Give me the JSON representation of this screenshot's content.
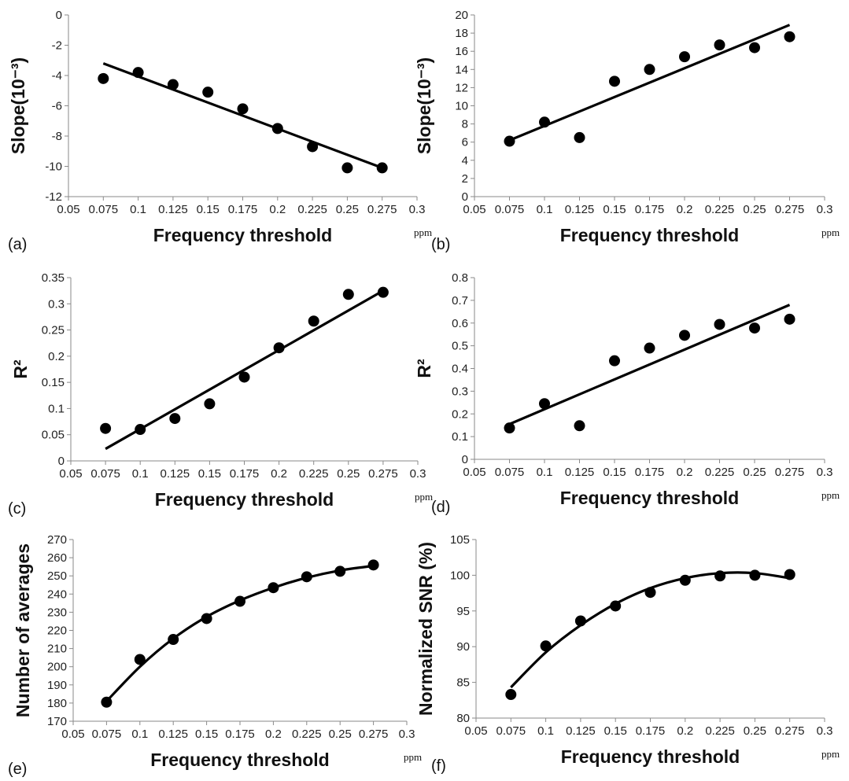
{
  "chart_data": [
    {
      "type": "scatter",
      "panel_label": "(a)",
      "ylabel": "Slope(10⁻³)",
      "xlabel": "Frequency threshold",
      "x_unit": "ppm",
      "xlim": [
        0.05,
        0.3
      ],
      "ylim": [
        -12,
        0
      ],
      "xticks": [
        "0.05",
        "0.075",
        "0.1",
        "0.125",
        "0.15",
        "0.175",
        "0.2",
        "0.225",
        "0.25",
        "0.275",
        "0.3"
      ],
      "yticks": [
        "-12",
        "-10",
        "-8",
        "-6",
        "-4",
        "-2",
        "0"
      ],
      "x": [
        0.075,
        0.1,
        0.125,
        0.15,
        0.175,
        0.2,
        0.225,
        0.25,
        0.275
      ],
      "y": [
        -4.2,
        -3.8,
        -4.6,
        -5.1,
        -6.2,
        -7.5,
        -8.7,
        -10.1,
        -10.1
      ],
      "trend": {
        "type": "linear",
        "x": [
          0.075,
          0.275
        ],
        "y": [
          -3.2,
          -10.1
        ]
      }
    },
    {
      "type": "scatter",
      "panel_label": "(b)",
      "ylabel": "Slope(10⁻³)",
      "xlabel": "Frequency threshold",
      "x_unit": "ppm",
      "xlim": [
        0.05,
        0.3
      ],
      "ylim": [
        0,
        20
      ],
      "xticks": [
        "0.05",
        "0.075",
        "0.1",
        "0.125",
        "0.15",
        "0.175",
        "0.2",
        "0.225",
        "0.25",
        "0.275",
        "0.3"
      ],
      "yticks": [
        "0",
        "2",
        "4",
        "6",
        "8",
        "10",
        "12",
        "14",
        "16",
        "18",
        "20"
      ],
      "x": [
        0.075,
        0.1,
        0.125,
        0.15,
        0.175,
        0.2,
        0.225,
        0.25,
        0.275
      ],
      "y": [
        6.1,
        8.2,
        6.5,
        12.7,
        14.0,
        15.4,
        16.7,
        16.4,
        17.6
      ],
      "trend": {
        "type": "linear",
        "x": [
          0.075,
          0.275
        ],
        "y": [
          6.2,
          18.9
        ]
      }
    },
    {
      "type": "scatter",
      "panel_label": "(c)",
      "ylabel": "R²",
      "xlabel": "Frequency threshold",
      "x_unit": "ppm",
      "xlim": [
        0.05,
        0.3
      ],
      "ylim": [
        0,
        0.35
      ],
      "xticks": [
        "0.05",
        "0.075",
        "0.1",
        "0.125",
        "0.15",
        "0.175",
        "0.2",
        "0.225",
        "0.25",
        "0.275",
        "0.3"
      ],
      "yticks": [
        "0",
        "0.05",
        "0.1",
        "0.15",
        "0.2",
        "0.25",
        "0.3",
        "0.35"
      ],
      "x": [
        0.075,
        0.1,
        0.125,
        0.15,
        0.175,
        0.2,
        0.225,
        0.25,
        0.275
      ],
      "y": [
        0.062,
        0.06,
        0.081,
        0.109,
        0.16,
        0.216,
        0.267,
        0.318,
        0.322
      ],
      "trend": {
        "type": "linear",
        "x": [
          0.075,
          0.275
        ],
        "y": [
          0.023,
          0.325
        ]
      }
    },
    {
      "type": "scatter",
      "panel_label": "(d)",
      "ylabel": "R²",
      "xlabel": "Frequency threshold",
      "x_unit": "ppm",
      "xlim": [
        0.05,
        0.3
      ],
      "ylim": [
        0,
        0.8
      ],
      "xticks": [
        "0.05",
        "0.075",
        "0.1",
        "0.125",
        "0.15",
        "0.175",
        "0.2",
        "0.225",
        "0.25",
        "0.275",
        "0.3"
      ],
      "yticks": [
        "0",
        "0.1",
        "0.2",
        "0.3",
        "0.4",
        "0.5",
        "0.6",
        "0.7",
        "0.8"
      ],
      "x": [
        0.075,
        0.1,
        0.125,
        0.15,
        0.175,
        0.2,
        0.225,
        0.25,
        0.275
      ],
      "y": [
        0.138,
        0.245,
        0.148,
        0.434,
        0.49,
        0.546,
        0.594,
        0.578,
        0.617
      ],
      "trend": {
        "type": "linear",
        "x": [
          0.075,
          0.275
        ],
        "y": [
          0.155,
          0.68
        ]
      }
    },
    {
      "type": "scatter",
      "panel_label": "(e)",
      "ylabel": "Number of averages",
      "xlabel": "Frequency threshold",
      "x_unit": "ppm",
      "xlim": [
        0.05,
        0.3
      ],
      "ylim": [
        170,
        270
      ],
      "xticks": [
        "0.05",
        "0.075",
        "0.1",
        "0.125",
        "0.15",
        "0.175",
        "0.2",
        "0.225",
        "0.25",
        "0.275",
        "0.3"
      ],
      "yticks": [
        "170",
        "180",
        "190",
        "200",
        "210",
        "220",
        "230",
        "240",
        "250",
        "260",
        "270"
      ],
      "x": [
        0.075,
        0.1,
        0.125,
        0.15,
        0.175,
        0.2,
        0.225,
        0.25,
        0.275
      ],
      "y": [
        180.5,
        204,
        215,
        226.5,
        236,
        243.5,
        249.5,
        252.5,
        256
      ],
      "trend": {
        "type": "polynomial",
        "x": [
          0.075,
          0.1,
          0.125,
          0.15,
          0.175,
          0.2,
          0.225,
          0.25,
          0.275
        ],
        "y": [
          181,
          200,
          215.5,
          227.5,
          236.5,
          243.5,
          249,
          253,
          255.5
        ]
      }
    },
    {
      "type": "scatter",
      "panel_label": "(f)",
      "ylabel": "Normalized SNR (%)",
      "xlabel": "Frequency threshold",
      "x_unit": "ppm",
      "xlim": [
        0.05,
        0.3
      ],
      "ylim": [
        80,
        105
      ],
      "xticks": [
        "0.05",
        "0.075",
        "0.1",
        "0.125",
        "0.15",
        "0.175",
        "0.2",
        "0.225",
        "0.25",
        "0.275",
        "0.3"
      ],
      "yticks": [
        "80",
        "85",
        "90",
        "95",
        "100",
        "105"
      ],
      "x": [
        0.075,
        0.1,
        0.125,
        0.15,
        0.175,
        0.2,
        0.225,
        0.25,
        0.275
      ],
      "y": [
        83.3,
        90.1,
        93.6,
        95.7,
        97.6,
        99.3,
        99.9,
        100.0,
        100.1
      ],
      "trend": {
        "type": "polynomial",
        "x": [
          0.075,
          0.1,
          0.125,
          0.15,
          0.175,
          0.2,
          0.225,
          0.25,
          0.275
        ],
        "y": [
          84.3,
          89.2,
          93.0,
          96.0,
          98.2,
          99.6,
          100.3,
          100.3,
          99.6
        ]
      }
    }
  ]
}
